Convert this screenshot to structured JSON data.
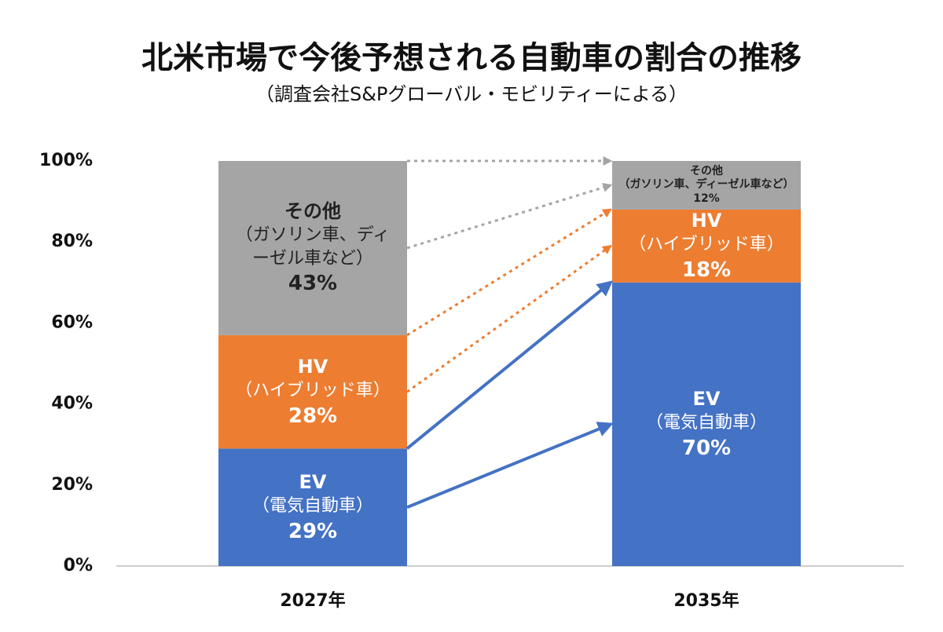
{
  "chart_data": {
    "type": "stacked_bar",
    "title": "北米市場で今後予想される自動車の割合の推移",
    "subtitle": "（調査会社S&Pグローバル・モビリティーによる）",
    "categories": [
      "2027年",
      "2035年"
    ],
    "series": [
      {
        "name": "EV",
        "note": "（電気自動車）",
        "color": "#4472c4",
        "values": [
          29,
          70
        ],
        "value_labels": [
          "29%",
          "70%"
        ]
      },
      {
        "name": "HV",
        "note": "（ハイブリッド車）",
        "color": "#ed7d31",
        "values": [
          28,
          18
        ],
        "value_labels": [
          "28%",
          "18%"
        ]
      },
      {
        "name": "その他",
        "note": "（ガソリン車、ディーゼル車など）",
        "color": "#a5a5a5",
        "values": [
          43,
          12
        ],
        "value_labels": [
          "43%",
          "12%"
        ]
      }
    ],
    "ylim": [
      0,
      100
    ],
    "yticks": [
      {
        "value": 0,
        "label": "0%"
      },
      {
        "value": 20,
        "label": "20%"
      },
      {
        "value": 40,
        "label": "40%"
      },
      {
        "value": 60,
        "label": "60%"
      },
      {
        "value": 80,
        "label": "80%"
      },
      {
        "value": 100,
        "label": "100%"
      }
    ]
  }
}
